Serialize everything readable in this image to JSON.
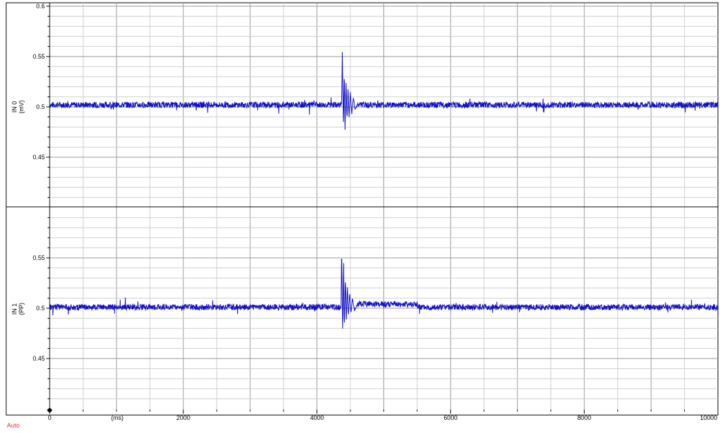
{
  "chart_data": [
    {
      "type": "line",
      "channel": "IN 0",
      "ylabel": "IN 0",
      "yunit": "(mV)",
      "ylim": [
        0.4,
        0.6
      ],
      "yticks": [
        0.45,
        0.5,
        0.55,
        0.6
      ],
      "ytick_labels": [
        "0.45",
        "0.5",
        "0.55",
        "0.6"
      ],
      "xlim": [
        0,
        10000
      ],
      "baseline": 0.502,
      "noise_amplitude": 0.003,
      "event": {
        "x": [
          4370,
          4380,
          4395,
          4410,
          4420,
          4435,
          4450,
          4465,
          4480,
          4500,
          4520,
          4545,
          4570,
          4600
        ],
        "y": [
          0.502,
          0.555,
          0.482,
          0.535,
          0.478,
          0.527,
          0.486,
          0.52,
          0.49,
          0.514,
          0.493,
          0.509,
          0.497,
          0.502
        ]
      },
      "grid": true,
      "color": "#1010c8"
    },
    {
      "type": "line",
      "channel": "IN 1",
      "ylabel": "IN 1",
      "yunit": "(PP)",
      "ylim": [
        0.4,
        0.6
      ],
      "yticks": [
        0.45,
        0.5,
        0.55
      ],
      "ytick_labels": [
        "0.45",
        "0.5",
        "0.55"
      ],
      "xlim": [
        0,
        10000
      ],
      "baseline": 0.501,
      "noise_amplitude": 0.003,
      "event": {
        "x": [
          4360,
          4370,
          4385,
          4400,
          4410,
          4425,
          4440,
          4455,
          4470,
          4490,
          4510,
          4530,
          4560,
          4600
        ],
        "y": [
          0.501,
          0.56,
          0.475,
          0.545,
          0.478,
          0.53,
          0.488,
          0.522,
          0.492,
          0.515,
          0.495,
          0.51,
          0.498,
          0.503
        ]
      },
      "elevated_segment": {
        "x": [
          4600,
          5500
        ],
        "y": 0.504
      },
      "grid": true,
      "color": "#1010c8"
    }
  ],
  "x_axis": {
    "unit_label": "(ms)",
    "ticks": [
      0,
      2000,
      4000,
      6000,
      8000,
      10000
    ],
    "tick_labels": [
      "0",
      "2000",
      "4000",
      "6000",
      "8000",
      "10000"
    ]
  },
  "status": {
    "auto_label": "Auto",
    "auto_color": "#e03030"
  },
  "colors": {
    "grid_major": "#9a9a9a",
    "grid_minor": "#cfcfcf",
    "axis": "#000000",
    "trace": "#1010c8"
  }
}
